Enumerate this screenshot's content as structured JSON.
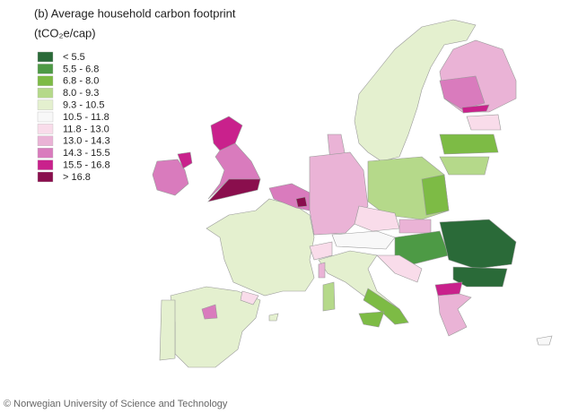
{
  "header": {
    "title": "(b) Average household carbon footprint",
    "unit": "(tCO₂e/cap)"
  },
  "legend": {
    "items": [
      {
        "label": "< 5.5",
        "color": "#2a6a38"
      },
      {
        "label": "5.5 - 6.8",
        "color": "#4d9a45"
      },
      {
        "label": "6.8 - 8.0",
        "color": "#7dbb45"
      },
      {
        "label": "8.0 - 9.3",
        "color": "#b5d98a"
      },
      {
        "label": "9.3 - 10.5",
        "color": "#e4f0cf"
      },
      {
        "label": "10.5 - 11.8",
        "color": "#f8f8f8"
      },
      {
        "label": "11.8 - 13.0",
        "color": "#f9dcea"
      },
      {
        "label": "13.0 - 14.3",
        "color": "#eab3d6"
      },
      {
        "label": "14.3 - 15.5",
        "color": "#d97bbd"
      },
      {
        "label": "15.5 - 16.8",
        "color": "#c9218c"
      },
      {
        "label": "> 16.8",
        "color": "#8a0e4d"
      }
    ]
  },
  "credit": "© Norwegian University of Science and Technology"
}
